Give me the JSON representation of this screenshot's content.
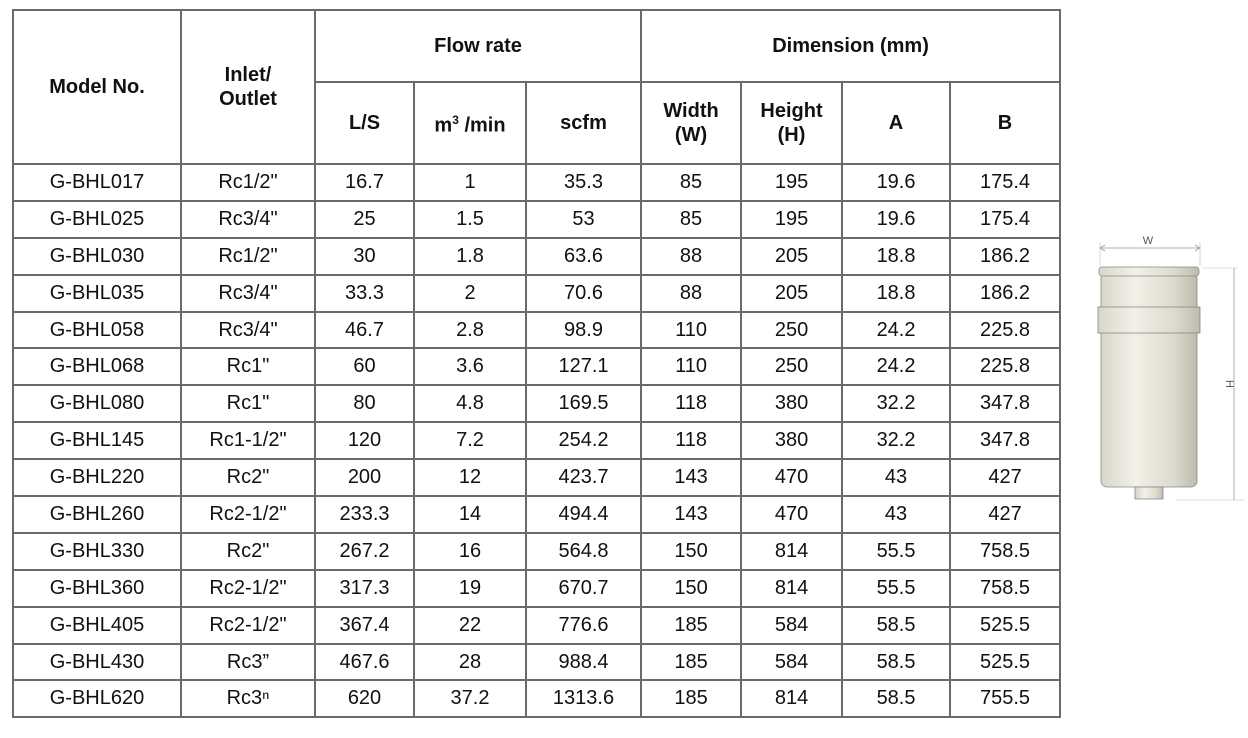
{
  "headers": {
    "model": "Model No.",
    "inlet": "Inlet/\nOutlet",
    "flow_rate": "Flow rate",
    "dimension": "Dimension (mm)",
    "ls": "L/S",
    "m3min_a": "m",
    "m3min_sup": "3",
    "m3min_b": " /min",
    "scfm": "scfm",
    "width": "Width\n(W)",
    "height": "Height\n(H)",
    "a": "A",
    "b": "B"
  },
  "rows": [
    [
      "G-BHL017",
      "Rc1/2\"",
      "16.7",
      "1",
      "35.3",
      "85",
      "195",
      "19.6",
      "175.4"
    ],
    [
      "G-BHL025",
      "Rc3/4\"",
      "25",
      "1.5",
      "53",
      "85",
      "195",
      "19.6",
      "175.4"
    ],
    [
      "G-BHL030",
      "Rc1/2\"",
      "30",
      "1.8",
      "63.6",
      "88",
      "205",
      "18.8",
      "186.2"
    ],
    [
      "G-BHL035",
      "Rc3/4\"",
      "33.3",
      "2",
      "70.6",
      "88",
      "205",
      "18.8",
      "186.2"
    ],
    [
      "G-BHL058",
      "Rc3/4\"",
      "46.7",
      "2.8",
      "98.9",
      "110",
      "250",
      "24.2",
      "225.8"
    ],
    [
      "G-BHL068",
      "Rc1\"",
      "60",
      "3.6",
      "127.1",
      "110",
      "250",
      "24.2",
      "225.8"
    ],
    [
      "G-BHL080",
      "Rc1\"",
      "80",
      "4.8",
      "169.5",
      "118",
      "380",
      "32.2",
      "347.8"
    ],
    [
      "G-BHL145",
      "Rc1-1/2\"",
      "120",
      "7.2",
      "254.2",
      "118",
      "380",
      "32.2",
      "347.8"
    ],
    [
      "G-BHL220",
      "Rc2\"",
      "200",
      "12",
      "423.7",
      "143",
      "470",
      "43",
      "427"
    ],
    [
      "G-BHL260",
      "Rc2-1/2\"",
      "233.3",
      "14",
      "494.4",
      "143",
      "470",
      "43",
      "427"
    ],
    [
      "G-BHL330",
      "Rc2\"",
      "267.2",
      "16",
      "564.8",
      "150",
      "814",
      "55.5",
      "758.5"
    ],
    [
      "G-BHL360",
      "Rc2-1/2\"",
      "317.3",
      "19",
      "670.7",
      "150",
      "814",
      "55.5",
      "758.5"
    ],
    [
      "G-BHL405",
      "Rc2-1/2\"",
      "367.4",
      "22",
      "776.6",
      "185",
      "584",
      "58.5",
      "525.5"
    ],
    [
      "G-BHL430",
      "Rc3”",
      "467.6",
      "28",
      "988.4",
      "185",
      "584",
      "58.5",
      "525.5"
    ],
    [
      "G-BHL620",
      "Rc3ⁿ",
      "620",
      "37.2",
      "1313.6",
      "185",
      "814",
      "58.5",
      "755.5"
    ]
  ],
  "figure": {
    "w_label": "W",
    "h_label": "H"
  }
}
